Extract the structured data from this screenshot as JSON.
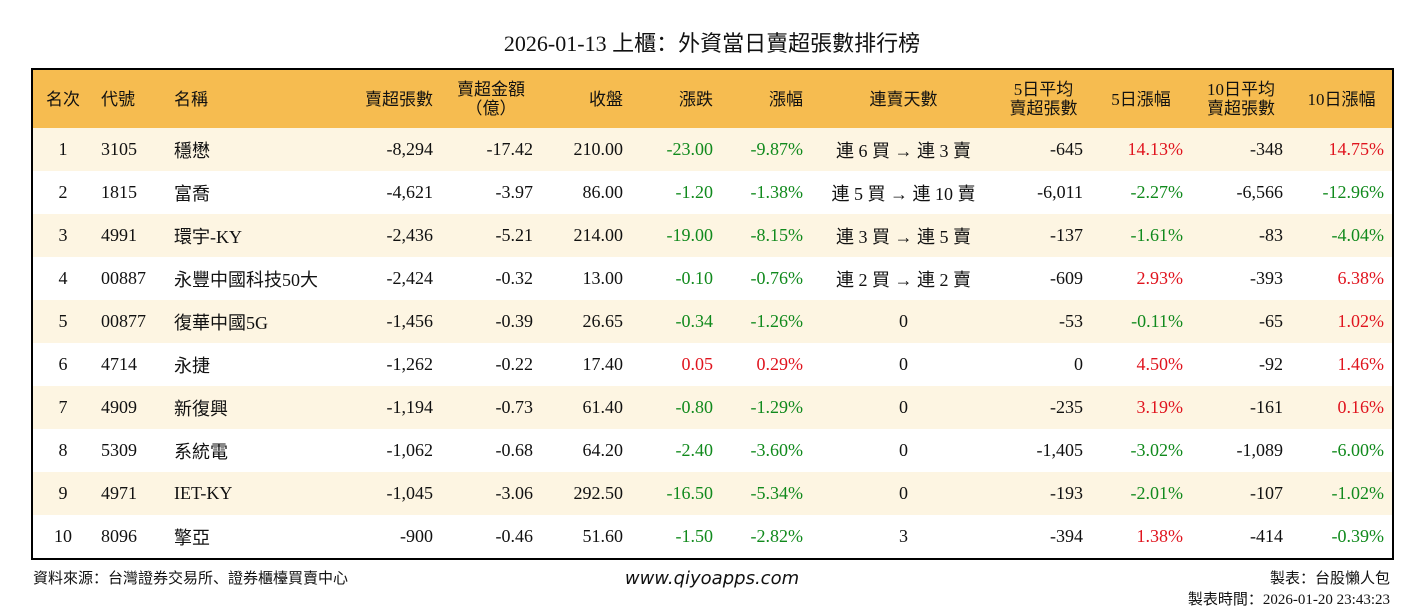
{
  "title": "2026-01-13 上櫃：外資當日賣超張數排行榜",
  "table": {
    "columns": [
      "名次",
      "代號",
      "名稱",
      "賣超張數",
      "賣超金額\n（億）",
      "收盤",
      "漲跌",
      "漲幅",
      "連賣天數",
      "5日平均\n賣超張數",
      "5日漲幅",
      "10日平均\n賣超張數",
      "10日漲幅"
    ],
    "rows": [
      [
        "1",
        "3105",
        "穩懋",
        "-8,294",
        "-17.42",
        "210.00",
        "-23.00",
        "-9.87%",
        "連 6 買 → 連 3 賣",
        "-645",
        "14.13%",
        "-348",
        "14.75%"
      ],
      [
        "2",
        "1815",
        "富喬",
        "-4,621",
        "-3.97",
        "86.00",
        "-1.20",
        "-1.38%",
        "連 5 買 → 連 10 賣",
        "-6,011",
        "-2.27%",
        "-6,566",
        "-12.96%"
      ],
      [
        "3",
        "4991",
        "環宇-KY",
        "-2,436",
        "-5.21",
        "214.00",
        "-19.00",
        "-8.15%",
        "連 3 買 → 連 5 賣",
        "-137",
        "-1.61%",
        "-83",
        "-4.04%"
      ],
      [
        "4",
        "00887",
        "永豐中國科技50大",
        "-2,424",
        "-0.32",
        "13.00",
        "-0.10",
        "-0.76%",
        "連 2 買 → 連 2 賣",
        "-609",
        "2.93%",
        "-393",
        "6.38%"
      ],
      [
        "5",
        "00877",
        "復華中國5G",
        "-1,456",
        "-0.39",
        "26.65",
        "-0.34",
        "-1.26%",
        "0",
        "-53",
        "-0.11%",
        "-65",
        "1.02%"
      ],
      [
        "6",
        "4714",
        "永捷",
        "-1,262",
        "-0.22",
        "17.40",
        "0.05",
        "0.29%",
        "0",
        "0",
        "4.50%",
        "-92",
        "1.46%"
      ],
      [
        "7",
        "4909",
        "新復興",
        "-1,194",
        "-0.73",
        "61.40",
        "-0.80",
        "-1.29%",
        "0",
        "-235",
        "3.19%",
        "-161",
        "0.16%"
      ],
      [
        "8",
        "5309",
        "系統電",
        "-1,062",
        "-0.68",
        "64.20",
        "-2.40",
        "-3.60%",
        "0",
        "-1,405",
        "-3.02%",
        "-1,089",
        "-6.00%"
      ],
      [
        "9",
        "4971",
        "IET-KY",
        "-1,045",
        "-3.06",
        "292.50",
        "-16.50",
        "-5.34%",
        "0",
        "-193",
        "-2.01%",
        "-107",
        "-1.02%"
      ],
      [
        "10",
        "8096",
        "擎亞",
        "-900",
        "-0.46",
        "51.60",
        "-1.50",
        "-2.82%",
        "3",
        "-394",
        "1.38%",
        "-414",
        "-0.39%"
      ]
    ]
  },
  "footer": {
    "source": "資料來源：台灣證券交易所、證券櫃檯買賣中心",
    "website": "www.qiyoapps.com",
    "maker": "製表：台股懶人包",
    "time": "製表時間：2026-01-20 23:43:23"
  }
}
